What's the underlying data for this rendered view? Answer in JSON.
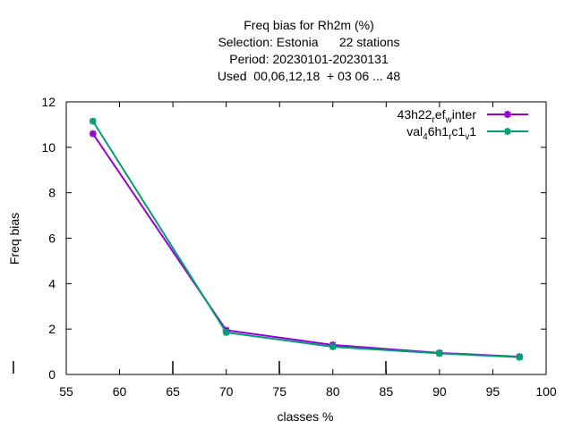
{
  "title_lines": [
    "Freq bias  for Rh2m (%)",
    "Selection: Estonia      22 stations",
    "Period: 20230101-20230131",
    "Used  00,06,12,18  + 03 06 ... 48"
  ],
  "chart_data": {
    "type": "line",
    "xlabel": "classes %",
    "ylabel": "Freq bias",
    "xlim": [
      55,
      100
    ],
    "ylim": [
      0,
      12
    ],
    "xticks": [
      55,
      60,
      65,
      70,
      75,
      80,
      85,
      90,
      95,
      100
    ],
    "yticks": [
      0,
      2,
      4,
      6,
      8,
      10,
      12
    ],
    "grid": false,
    "legend_position": "top-right",
    "series": [
      {
        "name": "43h22_ref_winter",
        "legend_parts": [
          "43h22",
          "r",
          "ef",
          "w",
          "inter"
        ],
        "color": "#9400d3",
        "x": [
          57.5,
          70,
          80,
          90,
          97.5
        ],
        "y": [
          10.6,
          1.95,
          1.3,
          0.95,
          0.78
        ]
      },
      {
        "name": "val_46h1_rc1_v1",
        "legend_parts": [
          "val",
          "4",
          "6h1",
          "r",
          "c1",
          "v",
          "1"
        ],
        "color": "#009e73",
        "x": [
          57.5,
          70,
          80,
          90,
          97.5
        ],
        "y": [
          11.15,
          1.85,
          1.22,
          0.93,
          0.76
        ]
      }
    ]
  }
}
